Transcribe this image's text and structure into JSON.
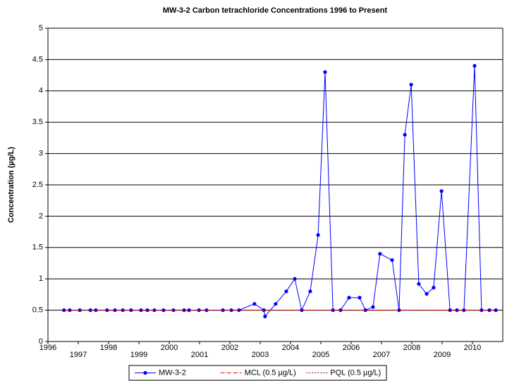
{
  "chart_data": {
    "type": "line",
    "title": "MW-3-2 Carbon tetrachloride  Concentrations 1996 to Present",
    "y_label": "Concentration (µg/L)",
    "xlim": [
      1996,
      2011
    ],
    "xticks": [
      1996,
      1997,
      1998,
      1999,
      2000,
      2001,
      2002,
      2003,
      2004,
      2005,
      2006,
      2007,
      2008,
      2009,
      2010
    ],
    "ylim": [
      0,
      5
    ],
    "yticks": [
      0,
      0.5,
      1,
      1.5,
      2,
      2.5,
      3,
      3.5,
      4,
      4.5,
      5
    ],
    "grid": true,
    "legend": "bottom",
    "series": [
      {
        "name": "MW-3-2",
        "color": "#0000ff",
        "dash": "solid",
        "marker": true,
        "x": [
          1996.53,
          1996.72,
          1997.05,
          1997.4,
          1997.58,
          1997.95,
          1998.21,
          1998.47,
          1998.74,
          1999.07,
          1999.28,
          1999.51,
          1999.81,
          2000.14,
          2000.49,
          2000.65,
          2000.98,
          2001.23,
          2001.77,
          2002.05,
          2002.3,
          2002.81,
          2003.12,
          2003.16,
          2003.51,
          2003.86,
          2004.14,
          2004.37,
          2004.65,
          2004.91,
          2005.14,
          2005.4,
          2005.65,
          2005.93,
          2006.28,
          2006.47,
          2006.72,
          2006.95,
          2007.35,
          2007.58,
          2007.77,
          2007.98,
          2008.23,
          2008.49,
          2008.72,
          2008.98,
          2009.26,
          2009.49,
          2009.72,
          2010.07,
          2010.3,
          2010.56,
          2010.77
        ],
        "values": [
          0.5,
          0.5,
          0.5,
          0.5,
          0.5,
          0.5,
          0.5,
          0.5,
          0.5,
          0.5,
          0.5,
          0.5,
          0.5,
          0.5,
          0.5,
          0.5,
          0.5,
          0.5,
          0.5,
          0.5,
          0.5,
          0.6,
          0.5,
          0.4,
          0.6,
          0.8,
          1.0,
          0.5,
          0.8,
          1.7,
          4.3,
          0.5,
          0.5,
          0.7,
          0.7,
          0.5,
          0.55,
          1.4,
          1.3,
          0.5,
          3.3,
          4.1,
          0.92,
          0.76,
          0.86,
          2.4,
          0.5,
          0.5,
          0.5,
          4.4,
          0.5,
          0.5,
          0.5
        ]
      },
      {
        "name": "MCL (0.5 µg/L)",
        "color": "#ff0000",
        "dash": "dashed",
        "marker": false,
        "x": [
          1996.53,
          2010.77
        ],
        "values": [
          0.5,
          0.5
        ]
      },
      {
        "name": "PQL (0.5 µg/L)",
        "color": "#990000",
        "dash": "dotted",
        "marker": false,
        "x": [
          1996.53,
          2010.77
        ],
        "values": [
          0.5,
          0.5
        ]
      }
    ]
  }
}
